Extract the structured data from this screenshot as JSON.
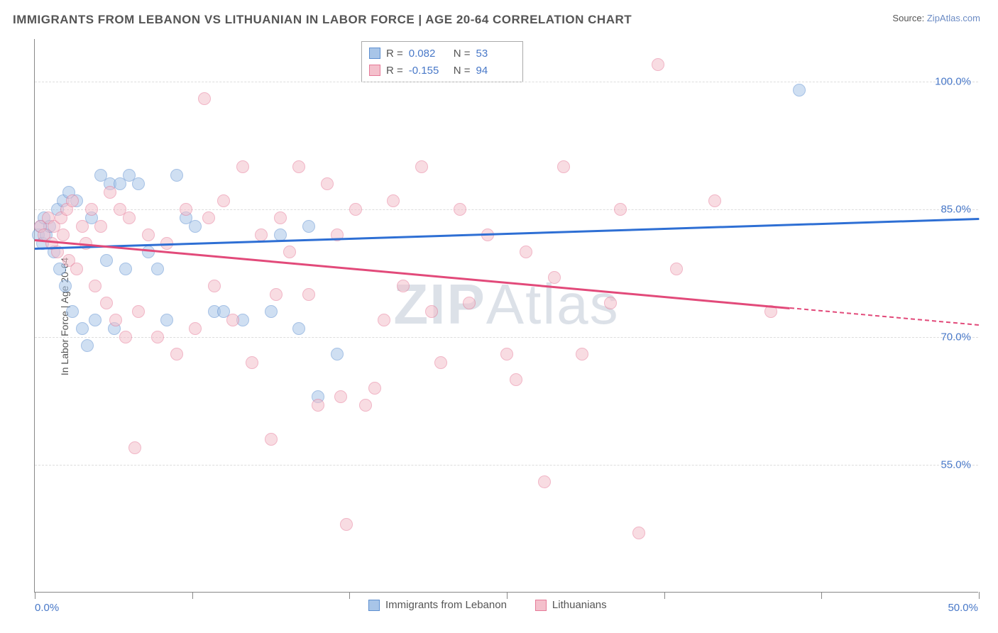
{
  "title": "IMMIGRANTS FROM LEBANON VS LITHUANIAN IN LABOR FORCE | AGE 20-64 CORRELATION CHART",
  "source_label": "Source:",
  "source_name": "ZipAtlas.com",
  "ylabel": "In Labor Force | Age 20-64",
  "watermark_a": "ZIP",
  "watermark_b": "Atlas",
  "chart": {
    "type": "scatter",
    "xlim": [
      0,
      50
    ],
    "ylim": [
      40,
      105
    ],
    "ytick_values": [
      55.0,
      70.0,
      85.0,
      100.0
    ],
    "ytick_labels": [
      "55.0%",
      "70.0%",
      "85.0%",
      "100.0%"
    ],
    "xtick_values": [
      0,
      8.33,
      16.67,
      25,
      33.33,
      41.67,
      50
    ],
    "xtick_label_left": "0.0%",
    "xtick_label_right": "50.0%",
    "background_color": "#ffffff",
    "grid_color": "#dddddd",
    "series": [
      {
        "name": "Immigrants from Lebanon",
        "fill": "#a8c5e8",
        "stroke": "#5d8fd0",
        "R": "0.082",
        "N": "53",
        "trend": {
          "x1": 0,
          "y1": 80.5,
          "x2": 50,
          "y2": 84.0,
          "color": "#2e6fd4"
        },
        "points": [
          [
            0.2,
            82
          ],
          [
            0.3,
            83
          ],
          [
            0.4,
            81
          ],
          [
            0.5,
            84
          ],
          [
            0.6,
            82
          ],
          [
            0.8,
            83
          ],
          [
            1.0,
            80
          ],
          [
            1.2,
            85
          ],
          [
            1.3,
            78
          ],
          [
            1.5,
            86
          ],
          [
            1.6,
            76
          ],
          [
            1.8,
            87
          ],
          [
            2.0,
            73
          ],
          [
            2.2,
            86
          ],
          [
            2.5,
            71
          ],
          [
            2.8,
            69
          ],
          [
            3.0,
            84
          ],
          [
            3.2,
            72
          ],
          [
            3.5,
            89
          ],
          [
            3.8,
            79
          ],
          [
            4.0,
            88
          ],
          [
            4.2,
            71
          ],
          [
            4.5,
            88
          ],
          [
            4.8,
            78
          ],
          [
            5.0,
            89
          ],
          [
            5.5,
            88
          ],
          [
            6.0,
            80
          ],
          [
            6.5,
            78
          ],
          [
            7.0,
            72
          ],
          [
            7.5,
            89
          ],
          [
            8.0,
            84
          ],
          [
            8.5,
            83
          ],
          [
            9.5,
            73
          ],
          [
            10.0,
            73
          ],
          [
            11.0,
            72
          ],
          [
            12.5,
            73
          ],
          [
            13.0,
            82
          ],
          [
            14.0,
            71
          ],
          [
            14.5,
            83
          ],
          [
            15.0,
            63
          ],
          [
            16.0,
            68
          ],
          [
            40.5,
            99
          ]
        ]
      },
      {
        "name": "Lithuanians",
        "fill": "#f4c0cc",
        "stroke": "#e67a98",
        "R": "-0.155",
        "N": "94",
        "trend": {
          "x1": 0,
          "y1": 81.5,
          "x2": 40,
          "y2": 73.5,
          "color": "#e24a7a",
          "dash_x2": 50,
          "dash_y2": 71.5
        },
        "points": [
          [
            0.3,
            83
          ],
          [
            0.5,
            82
          ],
          [
            0.7,
            84
          ],
          [
            0.9,
            81
          ],
          [
            1.0,
            83
          ],
          [
            1.2,
            80
          ],
          [
            1.4,
            84
          ],
          [
            1.5,
            82
          ],
          [
            1.7,
            85
          ],
          [
            1.8,
            79
          ],
          [
            2.0,
            86
          ],
          [
            2.2,
            78
          ],
          [
            2.5,
            83
          ],
          [
            2.7,
            81
          ],
          [
            3.0,
            85
          ],
          [
            3.2,
            76
          ],
          [
            3.5,
            83
          ],
          [
            3.8,
            74
          ],
          [
            4.0,
            87
          ],
          [
            4.3,
            72
          ],
          [
            4.5,
            85
          ],
          [
            4.8,
            70
          ],
          [
            5.0,
            84
          ],
          [
            5.3,
            57
          ],
          [
            5.5,
            73
          ],
          [
            6.0,
            82
          ],
          [
            6.5,
            70
          ],
          [
            7.0,
            81
          ],
          [
            7.5,
            68
          ],
          [
            8.0,
            85
          ],
          [
            8.5,
            71
          ],
          [
            9.0,
            98
          ],
          [
            9.2,
            84
          ],
          [
            9.5,
            76
          ],
          [
            10.0,
            86
          ],
          [
            10.5,
            72
          ],
          [
            11.0,
            90
          ],
          [
            11.5,
            67
          ],
          [
            12.0,
            82
          ],
          [
            12.5,
            58
          ],
          [
            12.8,
            75
          ],
          [
            13.0,
            84
          ],
          [
            13.5,
            80
          ],
          [
            14.0,
            90
          ],
          [
            14.5,
            75
          ],
          [
            15.0,
            62
          ],
          [
            15.5,
            88
          ],
          [
            16.0,
            82
          ],
          [
            16.2,
            63
          ],
          [
            16.5,
            48
          ],
          [
            17.0,
            85
          ],
          [
            17.5,
            62
          ],
          [
            18.0,
            64
          ],
          [
            18.5,
            72
          ],
          [
            19.0,
            86
          ],
          [
            19.5,
            76
          ],
          [
            20.5,
            90
          ],
          [
            21.0,
            73
          ],
          [
            21.5,
            67
          ],
          [
            22.5,
            85
          ],
          [
            23.0,
            74
          ],
          [
            24.0,
            82
          ],
          [
            25.0,
            68
          ],
          [
            25.5,
            65
          ],
          [
            26.0,
            80
          ],
          [
            27.0,
            53
          ],
          [
            27.5,
            77
          ],
          [
            28.0,
            90
          ],
          [
            29.0,
            68
          ],
          [
            30.5,
            74
          ],
          [
            31.0,
            85
          ],
          [
            32.0,
            47
          ],
          [
            33.0,
            102
          ],
          [
            34.0,
            78
          ],
          [
            36.0,
            86
          ],
          [
            39.0,
            73
          ]
        ]
      }
    ],
    "legend_labels": [
      "Immigrants from Lebanon",
      "Lithuanians"
    ]
  },
  "stats_box": {
    "R_label": "R =",
    "N_label": "N ="
  }
}
